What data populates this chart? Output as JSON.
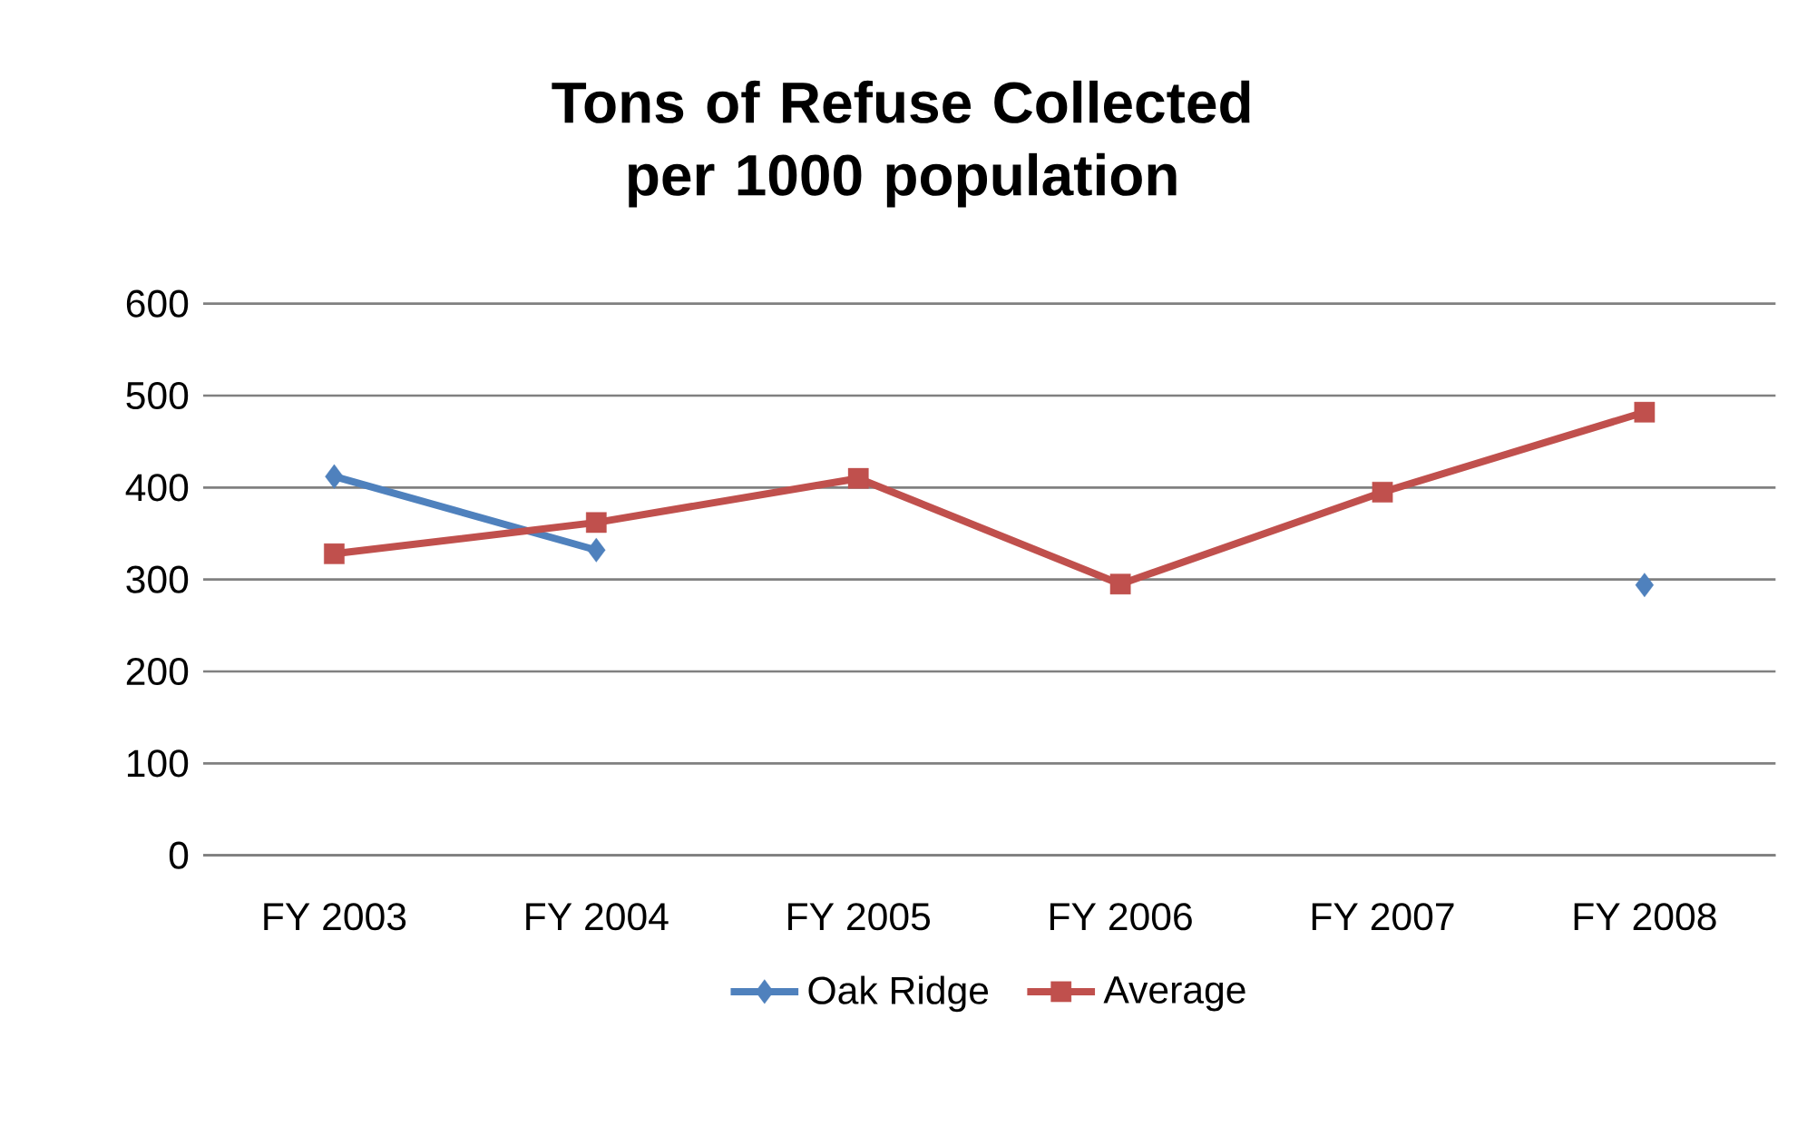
{
  "chart_data": {
    "type": "line",
    "title": "Tons of Refuse Collected\nper 1000 population",
    "categories": [
      "FY 2003",
      "FY 2004",
      "FY 2005",
      "FY 2006",
      "FY 2007",
      "FY 2008"
    ],
    "series": [
      {
        "name": "Oak Ridge",
        "color": "#4f81bd",
        "marker": "diamond",
        "values": [
          412,
          332,
          null,
          null,
          null,
          294
        ]
      },
      {
        "name": "Average",
        "color": "#c0504d",
        "marker": "square",
        "values": [
          328,
          362,
          410,
          295,
          395,
          482
        ]
      }
    ],
    "ylim": [
      0,
      600
    ],
    "yticks": [
      0,
      100,
      200,
      300,
      400,
      500,
      600
    ],
    "grid": "y",
    "legend": "bottom",
    "line_style": "solid"
  }
}
